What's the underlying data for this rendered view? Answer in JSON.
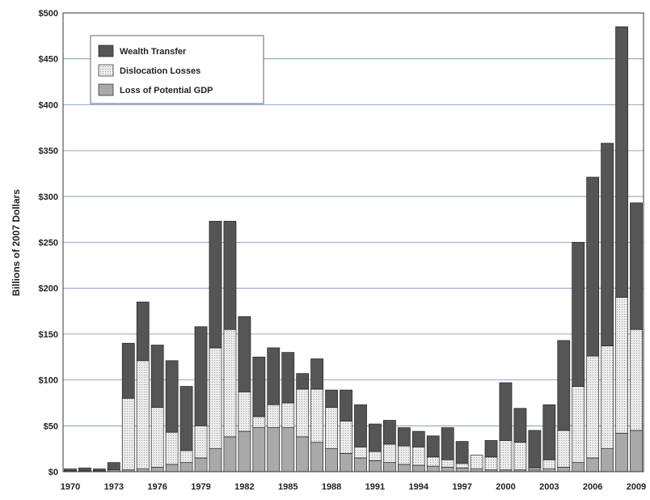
{
  "chart_data": {
    "type": "bar",
    "stacked": true,
    "ylabel": "Billions of 2007 Dollars",
    "xlabel": "",
    "ylim": [
      0,
      500
    ],
    "yticks": [
      "$0",
      "$50",
      "$100",
      "$150",
      "$200",
      "$250",
      "$300",
      "$350",
      "$400",
      "$450",
      "$500"
    ],
    "xticks": [
      "1970",
      "1973",
      "1976",
      "1979",
      "1982",
      "1985",
      "1988",
      "1991",
      "1994",
      "1997",
      "2000",
      "2003",
      "2006",
      "2009"
    ],
    "grid": "horizontal",
    "legend_position": "top-left",
    "categories": [
      "1970",
      "1971",
      "1972",
      "1973",
      "1974",
      "1975",
      "1976",
      "1977",
      "1978",
      "1979",
      "1980",
      "1981",
      "1982",
      "1983",
      "1984",
      "1985",
      "1986",
      "1987",
      "1988",
      "1989",
      "1990",
      "1991",
      "1992",
      "1993",
      "1994",
      "1995",
      "1996",
      "1997",
      "1998",
      "1999",
      "2000",
      "2001",
      "2002",
      "2003",
      "2004",
      "2005",
      "2006",
      "2007",
      "2008",
      "2009"
    ],
    "series": [
      {
        "name": "Loss of Potential GDP",
        "color": "#a9a9a9",
        "pattern": "solid",
        "values": [
          1,
          1,
          1,
          2,
          2,
          3,
          5,
          8,
          10,
          15,
          25,
          38,
          44,
          48,
          48,
          48,
          38,
          32,
          25,
          20,
          15,
          12,
          10,
          8,
          7,
          6,
          5,
          4,
          3,
          2,
          2,
          2,
          2,
          3,
          5,
          10,
          15,
          25,
          42,
          45
        ]
      },
      {
        "name": "Dislocation Losses",
        "color": "#e6e6e6",
        "pattern": "dotted",
        "values": [
          0,
          0,
          0,
          0,
          78,
          118,
          65,
          35,
          13,
          35,
          110,
          117,
          43,
          12,
          25,
          27,
          52,
          58,
          45,
          35,
          12,
          10,
          20,
          20,
          20,
          10,
          8,
          5,
          15,
          14,
          32,
          30,
          2,
          10,
          40,
          83,
          111,
          112,
          148,
          110
        ]
      },
      {
        "name": "Wealth Transfer",
        "color": "#555555",
        "pattern": "solid",
        "values": [
          2,
          3,
          2,
          8,
          60,
          64,
          68,
          78,
          70,
          108,
          138,
          118,
          82,
          65,
          62,
          55,
          17,
          33,
          19,
          34,
          46,
          30,
          26,
          20,
          17,
          23,
          35,
          24,
          0,
          18,
          63,
          37,
          41,
          60,
          98,
          157,
          195,
          221,
          295,
          138
        ]
      }
    ]
  }
}
